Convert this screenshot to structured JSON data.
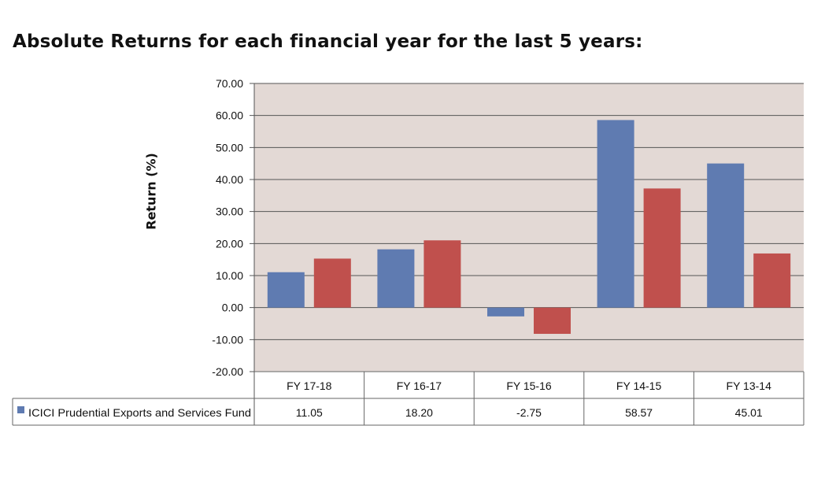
{
  "chart_data": {
    "type": "bar",
    "title": "Absolute Returns for each financial year for the last 5 years:",
    "ylabel": "Return (%)",
    "ylim": [
      -20,
      70
    ],
    "ytick_step": 10,
    "y_tick_labels": [
      "70.00",
      "60.00",
      "50.00",
      "40.00",
      "30.00",
      "20.00",
      "10.00",
      "0.00",
      "-10.00",
      "-20.00"
    ],
    "grid": true,
    "categories": [
      "FY 17-18",
      "FY 16-17",
      "FY 15-16",
      "FY 14-15",
      "FY 13-14"
    ],
    "series": [
      {
        "name": "ICICI Prudential Exports and Services Fund",
        "values": [
          11.05,
          18.2,
          -2.75,
          58.57,
          45.01
        ],
        "labels": [
          "11.05",
          "18.20",
          "-2.75",
          "58.57",
          "45.01"
        ],
        "color": "#5f7bb1"
      },
      {
        "values": [
          15.3,
          21.0,
          -8.2,
          37.2,
          16.9
        ],
        "color": "#c0504d"
      }
    ],
    "colors": {
      "plot_bg": "#e3d9d5",
      "grid": "#555555",
      "axis": "#555555"
    }
  }
}
